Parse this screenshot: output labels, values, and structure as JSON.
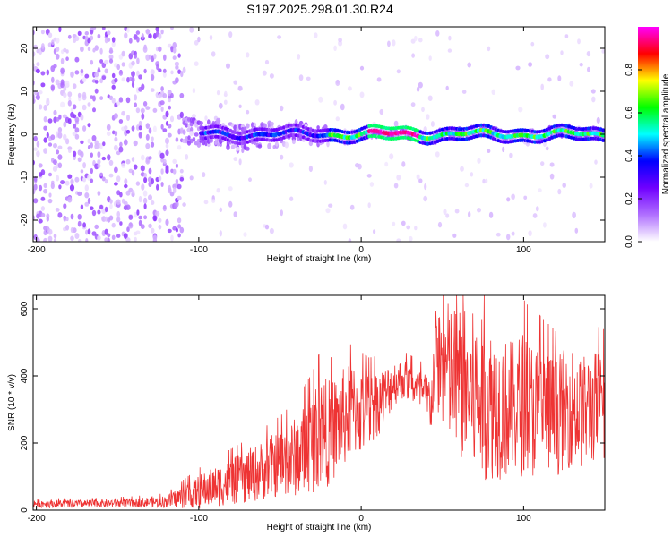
{
  "title": "S197.2025.298.01.30.R24",
  "chart_data": [
    {
      "type": "heatmap",
      "name": "spectrogram",
      "xlabel": "Height of straight line (km)",
      "ylabel": "Frequency (Hz)",
      "xlim": [
        -202,
        150
      ],
      "ylim": [
        -25,
        25
      ],
      "xticks": [
        -200,
        -100,
        0,
        100
      ],
      "yticks": [
        -20,
        -10,
        0,
        10,
        20
      ],
      "xtick_labels": [
        "-200",
        "-100",
        "0",
        "100"
      ],
      "ytick_labels": [
        "-20",
        "-10",
        "0",
        "10",
        "20"
      ],
      "signal_center_hz": 0,
      "noise_region_km": [
        -202,
        -110
      ],
      "ridge_region_km": [
        -100,
        150
      ],
      "peak_amplitude_region_km": [
        5,
        35
      ],
      "colorbar": {
        "label": "Normalized spectral amplitude",
        "range": [
          0,
          1
        ],
        "ticks": [
          0.0,
          0.2,
          0.4,
          0.6,
          0.8
        ],
        "tick_labels": [
          "0.0",
          "0.2",
          "0.4",
          "0.6",
          "0.8"
        ],
        "colors": [
          "#ffffff",
          "#b070ff",
          "#7000ff",
          "#0000ff",
          "#00ffff",
          "#00ff00",
          "#ffff00",
          "#ff0000",
          "#ff00ff"
        ]
      }
    },
    {
      "type": "line",
      "name": "snr",
      "xlabel": "Height of straight line (km)",
      "ylabel": "SNR (10 * v/v)",
      "xlim": [
        -202,
        150
      ],
      "ylim": [
        0,
        640
      ],
      "xticks": [
        -200,
        -100,
        0,
        100
      ],
      "yticks": [
        0,
        200,
        400,
        600
      ],
      "xtick_labels": [
        "-200",
        "-100",
        "0",
        "100"
      ],
      "ytick_labels": [
        "0",
        "200",
        "400",
        "600"
      ],
      "color": "#ee3333",
      "series": [
        {
          "name": "SNR",
          "x": [
            -202,
            -180,
            -160,
            -140,
            -120,
            -110,
            -100,
            -90,
            -80,
            -70,
            -60,
            -50,
            -40,
            -30,
            -25,
            -20,
            -15,
            -10,
            -5,
            0,
            5,
            10,
            15,
            20,
            25,
            30,
            35,
            40,
            43,
            46,
            50,
            55,
            60,
            65,
            70,
            75,
            80,
            85,
            90,
            95,
            100,
            105,
            110,
            115,
            120,
            125,
            130,
            135,
            140,
            145,
            150
          ],
          "values": [
            20,
            18,
            20,
            22,
            25,
            40,
            55,
            70,
            85,
            100,
            120,
            140,
            160,
            200,
            240,
            230,
            250,
            280,
            300,
            290,
            300,
            320,
            340,
            380,
            390,
            380,
            360,
            330,
            320,
            450,
            440,
            400,
            380,
            360,
            340,
            330,
            320,
            310,
            300,
            310,
            320,
            300,
            300,
            290,
            280,
            300,
            310,
            290,
            300,
            310,
            300
          ],
          "fluct": [
            12,
            12,
            12,
            14,
            18,
            35,
            50,
            60,
            70,
            80,
            90,
            100,
            120,
            150,
            170,
            160,
            150,
            150,
            140,
            130,
            110,
            100,
            90,
            70,
            60,
            60,
            60,
            80,
            90,
            150,
            200,
            220,
            230,
            240,
            250,
            240,
            230,
            220,
            210,
            210,
            220,
            210,
            200,
            190,
            180,
            180,
            180,
            170,
            170,
            170,
            170
          ]
        }
      ]
    }
  ]
}
